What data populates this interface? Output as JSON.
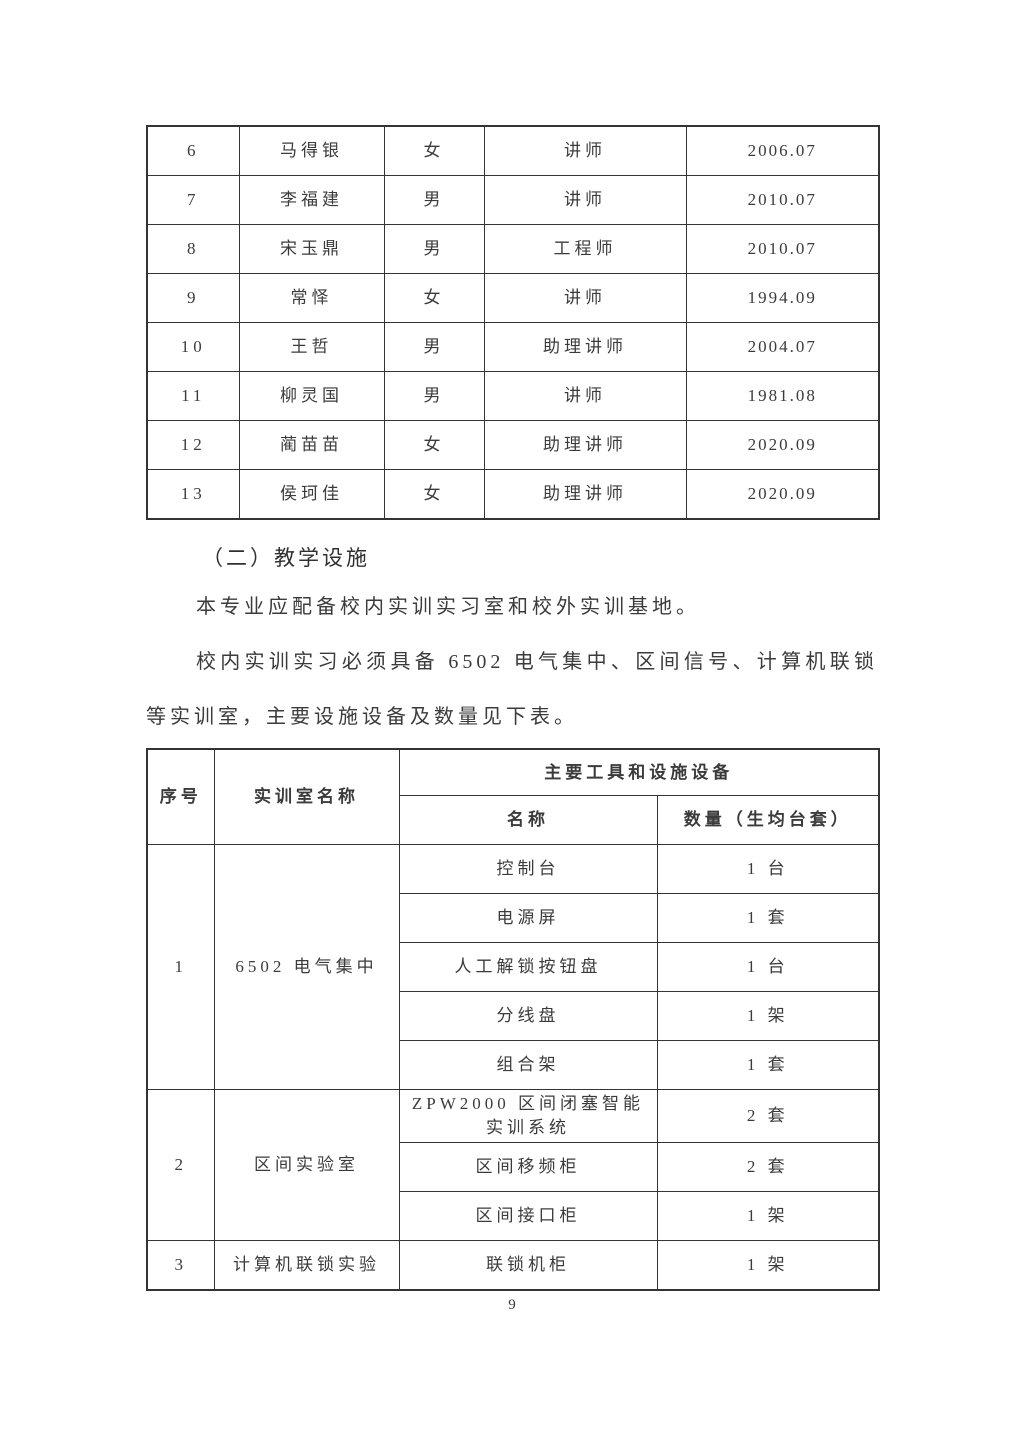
{
  "page": {
    "number": "9",
    "background_color": "#ffffff",
    "text_color": "#3b3b3b",
    "border_color": "#343434"
  },
  "teachers_table": {
    "rows": [
      {
        "no": "6",
        "name": "马得银",
        "gender": "女",
        "title": "讲师",
        "date": "2006.07"
      },
      {
        "no": "7",
        "name": "李福建",
        "gender": "男",
        "title": "讲师",
        "date": "2010.07"
      },
      {
        "no": "8",
        "name": "宋玉鼎",
        "gender": "男",
        "title": "工程师",
        "date": "2010.07"
      },
      {
        "no": "9",
        "name": "常怿",
        "gender": "女",
        "title": "讲师",
        "date": "1994.09"
      },
      {
        "no": "10",
        "name": "王哲",
        "gender": "男",
        "title": "助理讲师",
        "date": "2004.07"
      },
      {
        "no": "11",
        "name": "柳灵国",
        "gender": "男",
        "title": "讲师",
        "date": "1981.08"
      },
      {
        "no": "12",
        "name": "蔺苗苗",
        "gender": "女",
        "title": "助理讲师",
        "date": "2020.09"
      },
      {
        "no": "13",
        "name": "侯珂佳",
        "gender": "女",
        "title": "助理讲师",
        "date": "2020.09"
      }
    ]
  },
  "section_heading": "（二）教学设施",
  "paragraphs": [
    "本专业应配备校内实训实习室和校外实训基地。",
    "校内实训实习必须具备 6502 电气集中、区间信号、计算机联锁等实训室，主要设施设备及数量见下表。"
  ],
  "facilities_table": {
    "headers": {
      "no": "序号",
      "room": "实训室名称",
      "tools_group": "主要工具和设施设备",
      "name": "名称",
      "qty": "数量（生均台套）"
    },
    "groups": [
      {
        "no": "1",
        "room": "6502 电气集中",
        "items": [
          {
            "name": "控制台",
            "qty": "1 台"
          },
          {
            "name": "电源屏",
            "qty": "1 套"
          },
          {
            "name": "人工解锁按钮盘",
            "qty": "1 台"
          },
          {
            "name": "分线盘",
            "qty": "1 架"
          },
          {
            "name": "组合架",
            "qty": "1 套"
          }
        ]
      },
      {
        "no": "2",
        "room": "区间实验室",
        "items": [
          {
            "name": "ZPW2000 区间闭塞智能实训系统",
            "qty": "2 套"
          },
          {
            "name": "区间移频柜",
            "qty": "2 套"
          },
          {
            "name": "区间接口柜",
            "qty": "1 架"
          }
        ]
      },
      {
        "no": "3",
        "room": "计算机联锁实验",
        "items": [
          {
            "name": "联锁机柜",
            "qty": "1 架"
          }
        ]
      }
    ]
  }
}
